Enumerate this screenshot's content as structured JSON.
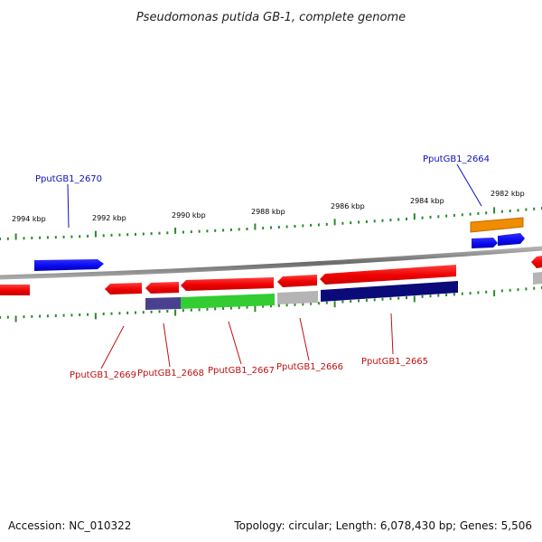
{
  "title": "Pseudomonas putida GB-1, complete genome",
  "footer": {
    "accession": "Accession: NC_010322",
    "summary": "Topology: circular; Length: 6,078,430 bp; Genes: 5,506"
  },
  "ticks": [
    {
      "label": "2994 kbp"
    },
    {
      "label": "2992 kbp"
    },
    {
      "label": "2990 kbp"
    },
    {
      "label": "2988 kbp"
    },
    {
      "label": "2986 kbp"
    },
    {
      "label": "2984 kbp"
    },
    {
      "label": "2982 kbp"
    }
  ],
  "gene_labels": [
    {
      "name": "PputGB1_2670",
      "color": "#1010c0"
    },
    {
      "name": "PputGB1_2664",
      "color": "#1010c0"
    },
    {
      "name": "PputGB1_2669",
      "color": "#c01010"
    },
    {
      "name": "PputGB1_2668",
      "color": "#c01010"
    },
    {
      "name": "PputGB1_2667",
      "color": "#c01010"
    },
    {
      "name": "PputGB1_2666",
      "color": "#c01010"
    },
    {
      "name": "PputGB1_2665",
      "color": "#c01010"
    }
  ],
  "colors": {
    "forward_gene": "#1a1aee",
    "reverse_gene": "#ee1a1a",
    "cog_navy": "#0a0a78",
    "cog_green": "#33cc33",
    "cog_purple": "#4a4090",
    "cog_grey": "#b4b4b4",
    "cog_orange": "#f08c00",
    "tick_green": "#2a8a2a",
    "backbone": "#808080"
  }
}
